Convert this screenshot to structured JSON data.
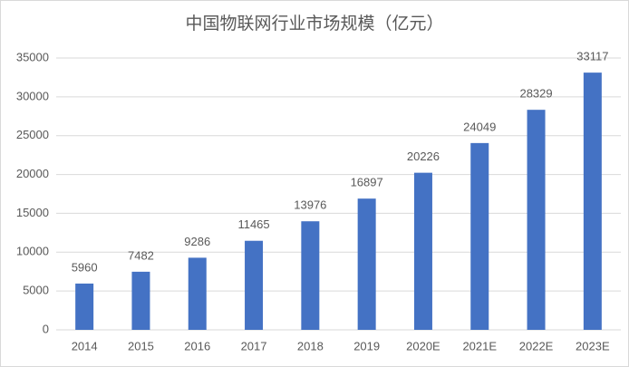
{
  "chart_data": {
    "type": "bar",
    "title": "中国物联网行业市场规模（亿元）",
    "categories": [
      "2014",
      "2015",
      "2016",
      "2017",
      "2018",
      "2019",
      "2020E",
      "2021E",
      "2022E",
      "2023E"
    ],
    "values": [
      5960,
      7482,
      9286,
      11465,
      13976,
      16897,
      20226,
      24049,
      28329,
      33117
    ],
    "color": "#4472c4",
    "ylim": [
      0,
      35000
    ],
    "yticks": [
      0,
      5000,
      10000,
      15000,
      20000,
      25000,
      30000,
      35000
    ],
    "grid": true
  }
}
